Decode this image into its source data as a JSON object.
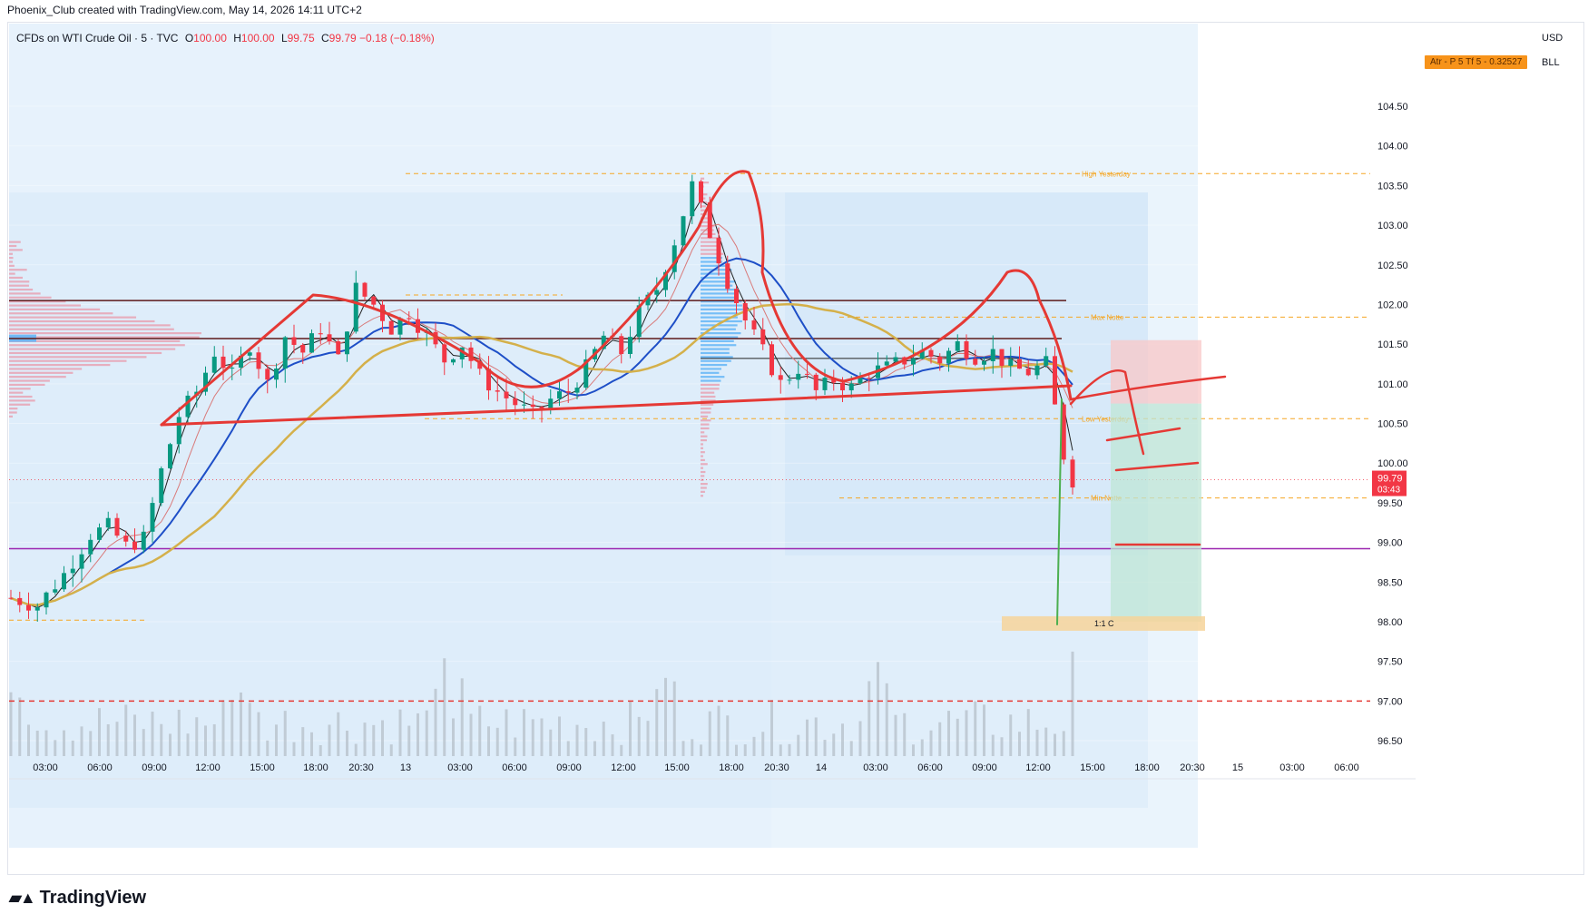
{
  "header": {
    "credit": "Phoenix_Club created with TradingView.com, May 14, 2026 14:11 UTC+2"
  },
  "legend": {
    "symbol": "CFDs on WTI Crude Oil · 5 · TVC",
    "o_label": "O",
    "o_value": "100.00",
    "h_label": "H",
    "h_value": "100.00",
    "l_label": "L",
    "l_value": "99.75",
    "c_label": "C",
    "c_value": "99.79",
    "change": "−0.18 (−0.18%)"
  },
  "currency": [
    "USD",
    "BLL"
  ],
  "atr_label": "Atr - P 5 Tf 5 - 0.32527",
  "price_tag": {
    "price": "99.79",
    "countdown": "03:43"
  },
  "footer": {
    "brand": "TradingView"
  },
  "colors": {
    "down": "#f23645",
    "up": "#089981",
    "drawing": "#e53935",
    "ema_blue": "#1e4fc7",
    "ema_gold": "#d4b04a",
    "level_orange": "#f5a623",
    "purple": "#9c27b0",
    "maroon": "#5d1a1a"
  },
  "chart_data": {
    "type": "candlestick",
    "title": "CFDs on WTI Crude Oil · 5 · TVC",
    "ylim": [
      96.25,
      105.05
    ],
    "y_ticks": [
      "104.50",
      "104.00",
      "103.50",
      "103.00",
      "102.50",
      "102.00",
      "101.50",
      "101.00",
      "100.50",
      "100.00",
      "99.50",
      "99.00",
      "98.50",
      "98.00",
      "97.50",
      "97.00",
      "96.50"
    ],
    "x_ticks": [
      "03:00",
      "06:00",
      "09:00",
      "12:00",
      "15:00",
      "18:00",
      "20:30",
      "13",
      "03:00",
      "06:00",
      "09:00",
      "12:00",
      "15:00",
      "18:00",
      "20:30",
      "14",
      "03:00",
      "06:00",
      "09:00",
      "12:00",
      "15:00",
      "18:00",
      "20:30",
      "15",
      "03:00",
      "06:00"
    ],
    "price_path": [
      [
        0,
        98.3
      ],
      [
        3,
        98.2
      ],
      [
        6,
        98.6
      ],
      [
        9,
        99.1
      ],
      [
        11,
        99.2
      ],
      [
        13,
        98.95
      ],
      [
        15,
        99.05
      ],
      [
        17,
        99.9
      ],
      [
        19,
        100.6
      ],
      [
        21,
        100.9
      ],
      [
        23,
        101.4
      ],
      [
        25,
        101.1
      ],
      [
        27,
        101.5
      ],
      [
        29,
        101.0
      ],
      [
        31,
        101.6
      ],
      [
        33,
        101.4
      ],
      [
        35,
        101.7
      ],
      [
        37,
        101.3
      ],
      [
        39,
        102.2
      ],
      [
        41,
        102.0
      ],
      [
        43,
        101.7
      ],
      [
        45,
        101.9
      ],
      [
        47,
        101.6
      ],
      [
        49,
        101.3
      ],
      [
        51,
        101.5
      ],
      [
        53,
        101.1
      ],
      [
        55,
        100.9
      ],
      [
        57,
        100.75
      ],
      [
        59,
        100.6
      ],
      [
        61,
        100.8
      ],
      [
        63,
        100.9
      ],
      [
        65,
        101.2
      ],
      [
        67,
        101.6
      ],
      [
        69,
        101.4
      ],
      [
        71,
        101.9
      ],
      [
        73,
        102.2
      ],
      [
        75,
        102.8
      ],
      [
        77,
        103.5
      ],
      [
        79,
        102.9
      ],
      [
        81,
        102.3
      ],
      [
        83,
        101.8
      ],
      [
        85,
        101.4
      ],
      [
        87,
        101.0
      ],
      [
        89,
        101.2
      ],
      [
        91,
        100.9
      ],
      [
        93,
        101.05
      ],
      [
        95,
        100.95
      ],
      [
        97,
        101.15
      ],
      [
        99,
        101.2
      ],
      [
        101,
        101.3
      ],
      [
        103,
        101.4
      ],
      [
        105,
        101.3
      ],
      [
        107,
        101.5
      ],
      [
        109,
        101.35
      ],
      [
        111,
        101.4
      ],
      [
        113,
        101.2
      ],
      [
        115,
        101.15
      ],
      [
        117,
        101.25
      ],
      [
        118,
        100.7
      ],
      [
        119,
        100.1
      ],
      [
        120,
        99.79
      ]
    ],
    "levels": [
      {
        "label": "High Yesterday",
        "price": 103.65
      },
      {
        "label": "Max Notte",
        "price": 101.84
      },
      {
        "label": "Low Yesterday",
        "price": 100.56
      },
      {
        "label": "Min Notte",
        "price": 99.56
      }
    ],
    "risk_reward": {
      "label": "1:1 C",
      "stop": 101.55,
      "entry": 100.75,
      "target": 98.0
    }
  }
}
